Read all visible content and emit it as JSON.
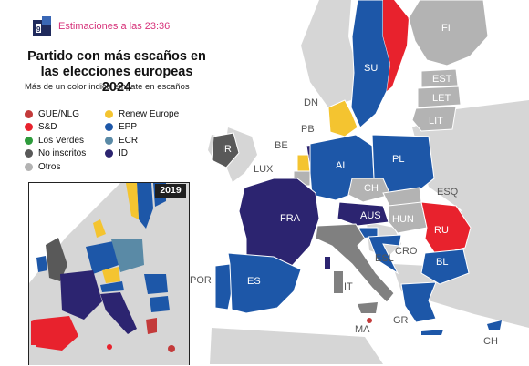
{
  "header": {
    "estimate_time": "Estimaciones a las 23:36"
  },
  "title": "Partido con más escaños en las elecciones europeas 2024",
  "subtitle": "Más de un color indica empate en escaños",
  "legend": [
    {
      "label": "GUE/NLG",
      "color": "#c33a3a"
    },
    {
      "label": "S&D",
      "color": "#e8222d"
    },
    {
      "label": "Los Verdes",
      "color": "#2e9b3c"
    },
    {
      "label": "No inscritos",
      "color": "#595959"
    },
    {
      "label": "Otros",
      "color": "#b3b3b3"
    },
    {
      "label": "Renew Europe",
      "color": "#f4c430"
    },
    {
      "label": "EPP",
      "color": "#1d57a8"
    },
    {
      "label": "ECR",
      "color": "#5a8aa6"
    },
    {
      "label": "ID",
      "color": "#2c2470"
    }
  ],
  "inset": {
    "year": "2019"
  },
  "countries": {
    "FI": "FI",
    "SU": "SU",
    "EST": "EST",
    "LET": "LET",
    "LIT": "LIT",
    "DN": "DN",
    "IR": "IR",
    "PB": "PB",
    "BE": "BE",
    "LUX": "LUX",
    "AL": "AL",
    "PL": "PL",
    "CH1": "CH",
    "ESQ": "ESQ",
    "FRA": "FRA",
    "AUS": "AUS",
    "HUN": "HUN",
    "RU": "RU",
    "CRO": "CRO",
    "ESL": "ESL",
    "BL": "BL",
    "POR": "POR",
    "ES": "ES",
    "IT": "IT",
    "MA": "MA",
    "GR": "GR",
    "CH2": "CH"
  },
  "colors": {
    "sea": "#ffffff",
    "nonEU": "#d6d6d6",
    "border": "#ffffff",
    "logo": "#1f2a5c"
  }
}
